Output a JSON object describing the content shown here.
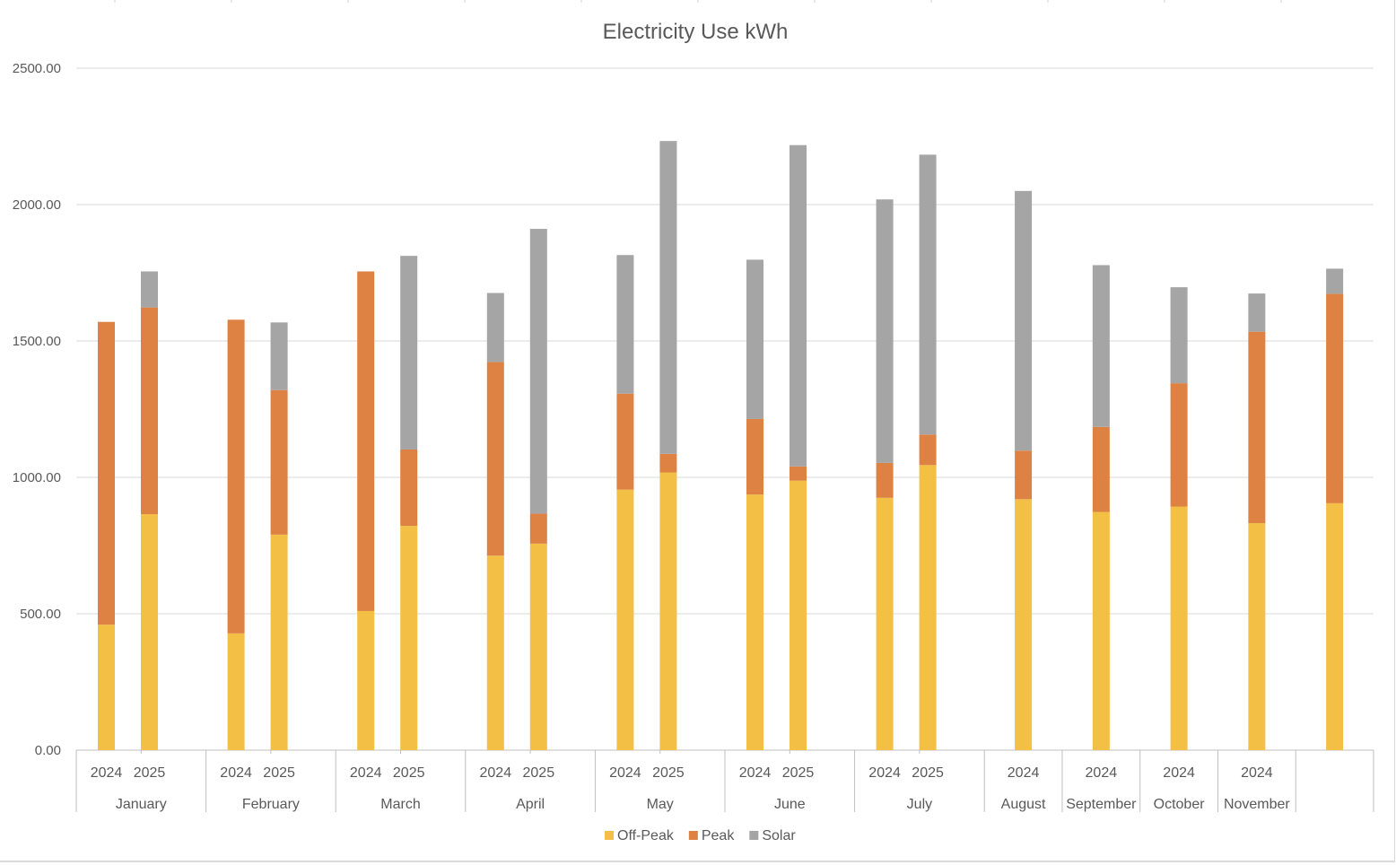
{
  "chart_data": {
    "type": "bar",
    "stacked": true,
    "title": "Electricity Use kWh",
    "xlabel": "",
    "ylabel": "",
    "ylim": [
      0,
      2500
    ],
    "yticks": [
      "0.00",
      "500.00",
      "1000.00",
      "1500.00",
      "2000.00",
      "2500.00"
    ],
    "grid": true,
    "legend_position": "bottom",
    "groups": [
      {
        "label": "January",
        "bars": [
          "2024",
          "2025"
        ]
      },
      {
        "label": "February",
        "bars": [
          "2024",
          "2025"
        ]
      },
      {
        "label": "March",
        "bars": [
          "2024",
          "2025"
        ]
      },
      {
        "label": "April",
        "bars": [
          "2024",
          "2025"
        ]
      },
      {
        "label": "May",
        "bars": [
          "2024",
          "2025"
        ]
      },
      {
        "label": "June",
        "bars": [
          "2024",
          "2025"
        ]
      },
      {
        "label": "July",
        "bars": [
          "2024",
          "2025"
        ]
      },
      {
        "label": "August",
        "bars": [
          "2024"
        ]
      },
      {
        "label": "September",
        "bars": [
          "2024"
        ]
      },
      {
        "label": "October",
        "bars": [
          "2024"
        ]
      },
      {
        "label": "November",
        "bars": [
          "2024"
        ]
      },
      {
        "label": "",
        "bars": [
          ""
        ]
      }
    ],
    "categories": [
      "January 2024",
      "January 2025",
      "February 2024",
      "February 2025",
      "March 2024",
      "March 2025",
      "April 2024",
      "April 2025",
      "May 2024",
      "May 2025",
      "June 2024",
      "June 2025",
      "July 2024",
      "July 2025",
      "August 2024",
      "September 2024",
      "October 2024",
      "November 2024",
      ""
    ],
    "series": [
      {
        "name": "Off-Peak",
        "color": "#F4BF45",
        "values": [
          460,
          865,
          428,
          790,
          510,
          822,
          713,
          757,
          955,
          1018,
          937,
          988,
          925,
          1045,
          920,
          873,
          893,
          832,
          905
        ]
      },
      {
        "name": "Peak",
        "color": "#DE8244",
        "values": [
          1110,
          758,
          1150,
          530,
          1245,
          280,
          710,
          110,
          352,
          68,
          277,
          52,
          128,
          112,
          178,
          312,
          452,
          702,
          768
        ]
      },
      {
        "name": "Solar",
        "color": "#A5A5A5",
        "values": [
          0,
          132,
          0,
          248,
          0,
          710,
          253,
          1044,
          508,
          1147,
          584,
          1178,
          966,
          1026,
          952,
          593,
          352,
          140,
          92
        ]
      }
    ]
  }
}
